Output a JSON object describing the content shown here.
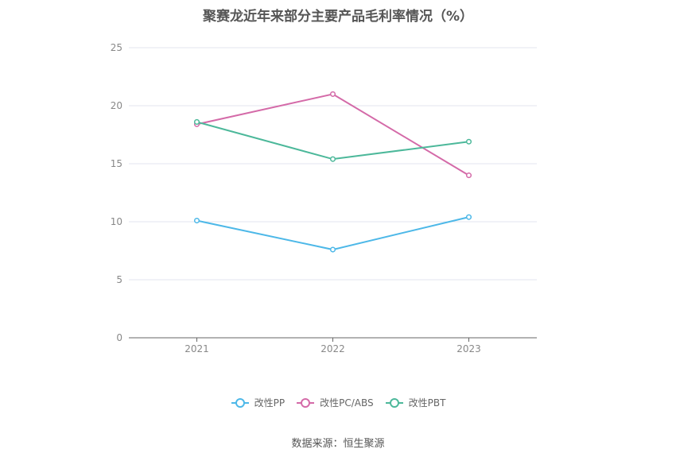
{
  "title": "聚赛龙近年来部分主要产品毛利率情况（%）",
  "source": "数据来源：恒生聚源",
  "chart_data": {
    "type": "line",
    "categories": [
      "2021",
      "2022",
      "2023"
    ],
    "ylim": [
      0,
      25
    ],
    "yticks": [
      0,
      5,
      10,
      15,
      20,
      25
    ],
    "grid": true,
    "legend_position": "bottom",
    "series": [
      {
        "name": "改性PP",
        "color": "#4db8e8",
        "values": [
          10.1,
          7.6,
          10.4
        ]
      },
      {
        "name": "改性PC/ABS",
        "color": "#d46aa8",
        "values": [
          18.4,
          21.0,
          14.0
        ]
      },
      {
        "name": "改性PBT",
        "color": "#4cb89a",
        "values": [
          18.6,
          15.4,
          16.9
        ]
      }
    ]
  }
}
